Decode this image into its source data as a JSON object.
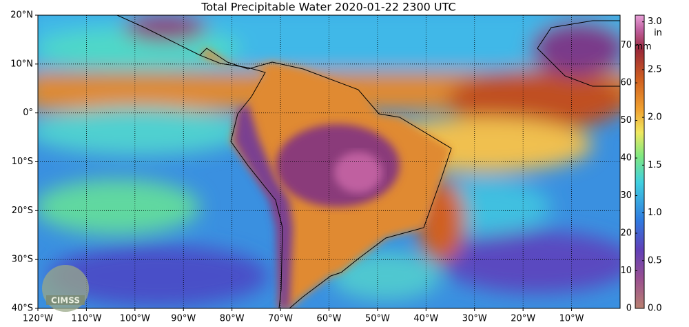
{
  "map": {
    "title": "Total Precipitable Water  2020-01-22 2300 UTC",
    "lon_lim": [
      -120,
      0
    ],
    "lat_lim": [
      -40,
      20
    ],
    "lon_ticks": [
      {
        "value": -120,
        "label": "120°W"
      },
      {
        "value": -110,
        "label": "110°W"
      },
      {
        "value": -100,
        "label": "100°W"
      },
      {
        "value": -90,
        "label": "90°W"
      },
      {
        "value": -80,
        "label": "80°W"
      },
      {
        "value": -70,
        "label": "70°W"
      },
      {
        "value": -60,
        "label": "60°W"
      },
      {
        "value": -50,
        "label": "50°W"
      },
      {
        "value": -40,
        "label": "40°W"
      },
      {
        "value": -30,
        "label": "30°W"
      },
      {
        "value": -20,
        "label": "20°W"
      },
      {
        "value": -10,
        "label": "10°W"
      }
    ],
    "lat_ticks": [
      {
        "value": 20,
        "label": "20°N"
      },
      {
        "value": 10,
        "label": "10°N"
      },
      {
        "value": 0,
        "label": "0°"
      },
      {
        "value": -10,
        "label": "10°S"
      },
      {
        "value": -20,
        "label": "20°S"
      },
      {
        "value": -30,
        "label": "30°S"
      },
      {
        "value": -40,
        "label": "40°S"
      }
    ],
    "colorbar": {
      "mm_unit": "mm",
      "in_unit": "in",
      "mm_lim": [
        0,
        78
      ],
      "mm_ticks": [
        0,
        10,
        20,
        30,
        40,
        50,
        60,
        70
      ],
      "in_lim": [
        0,
        3.07
      ],
      "in_ticks": [
        {
          "value": 0,
          "label": "0.0"
        },
        {
          "value": 0.5,
          "label": "0.5"
        },
        {
          "value": 1,
          "label": "1.0"
        },
        {
          "value": 1.5,
          "label": "1.5"
        },
        {
          "value": 2,
          "label": "2.0"
        },
        {
          "value": 2.5,
          "label": "2.5"
        },
        {
          "value": 3,
          "label": "3.0"
        }
      ]
    },
    "logo": "CIMSS"
  }
}
